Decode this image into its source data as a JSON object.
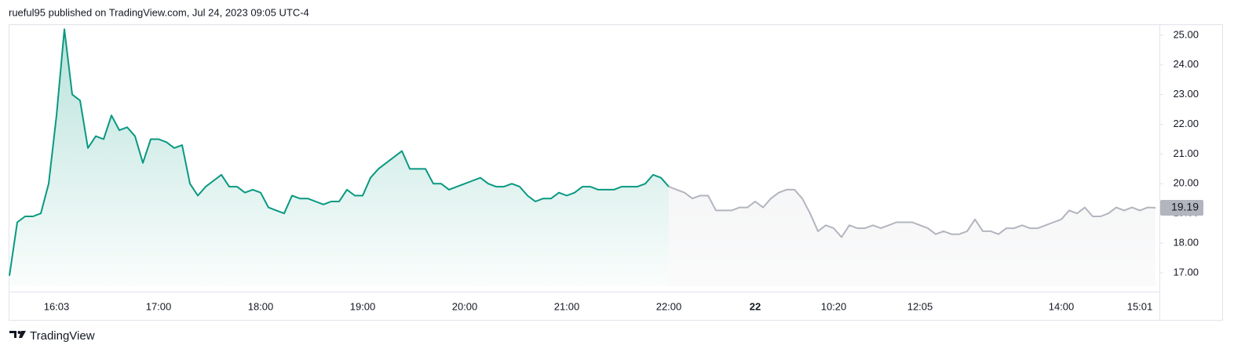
{
  "caption": "rueful95 published on TradingView.com, Jul 24, 2023 09:05 UTC-4",
  "brand": "TradingView",
  "chart_data": {
    "type": "line",
    "categories": [
      null,
      null,
      null,
      null,
      null,
      null,
      "16:03",
      null,
      null,
      null,
      null,
      null,
      null,
      null,
      null,
      null,
      null,
      null,
      null,
      "17:00",
      null,
      null,
      null,
      null,
      null,
      null,
      null,
      null,
      null,
      null,
      null,
      null,
      "18:00",
      null,
      null,
      null,
      null,
      null,
      null,
      null,
      null,
      null,
      null,
      null,
      null,
      "19:00",
      null,
      null,
      null,
      null,
      null,
      null,
      null,
      null,
      null,
      null,
      null,
      null,
      "20:00",
      null,
      null,
      null,
      null,
      null,
      null,
      null,
      null,
      null,
      null,
      null,
      null,
      "21:00",
      null,
      null,
      null,
      null,
      null,
      null,
      null,
      null,
      null,
      null,
      null,
      null,
      "22:00",
      null,
      null,
      null,
      null,
      null,
      null,
      null,
      null,
      null,
      null,
      "22",
      null,
      null,
      null,
      null,
      null,
      null,
      null,
      null,
      null,
      "10:20",
      null,
      null,
      null,
      null,
      null,
      null,
      null,
      null,
      null,
      null,
      "12:05",
      null,
      null,
      null,
      null,
      null,
      null,
      null,
      null,
      null,
      null,
      null,
      null,
      null,
      null,
      null,
      null,
      null,
      "14:00",
      null,
      null,
      null,
      null,
      null,
      null,
      null,
      null,
      null,
      "15:01",
      null,
      null
    ],
    "series": [
      {
        "color": "#089981",
        "values": [
          16.9,
          18.7,
          18.9,
          18.9,
          19.0,
          20.0,
          22.3,
          25.2,
          23.0,
          22.8,
          21.2,
          21.6,
          21.5,
          22.3,
          21.8,
          21.9,
          21.6,
          20.7,
          21.5,
          21.5,
          21.4,
          21.2,
          21.3,
          20.0,
          19.6,
          19.9,
          20.1,
          20.3,
          19.9,
          19.9,
          19.7,
          19.8,
          19.7,
          19.2,
          19.1,
          19.0,
          19.6,
          19.5,
          19.5,
          19.4,
          19.3,
          19.4,
          19.4,
          19.8,
          19.6,
          19.6,
          20.2,
          20.5,
          20.7,
          20.9,
          21.1,
          20.5,
          20.5,
          20.5,
          20.0,
          20.0,
          19.8,
          19.9,
          20.0,
          20.1,
          20.2,
          20.0,
          19.9,
          19.9,
          20.0,
          19.9,
          19.6,
          19.4,
          19.5,
          19.5,
          19.7,
          19.6,
          19.7,
          19.9,
          19.9,
          19.8,
          19.8,
          19.8,
          19.9,
          19.9,
          19.9,
          20.0,
          20.3,
          20.2,
          19.9,
          null,
          null,
          null,
          null,
          null,
          null,
          null,
          null,
          null,
          null,
          null,
          null,
          null,
          null,
          null,
          null,
          null,
          null,
          null,
          null,
          null,
          null,
          null,
          null,
          null,
          null,
          null,
          null,
          null,
          null,
          null,
          null,
          null,
          null,
          null,
          null,
          null,
          null,
          null,
          null,
          null,
          null,
          null,
          null,
          null,
          null,
          null,
          null,
          null,
          null,
          null,
          null,
          null,
          null,
          null,
          null,
          null,
          null,
          null,
          null,
          null,
          null
        ]
      },
      {
        "color": "#b2b5be",
        "values": [
          null,
          null,
          null,
          null,
          null,
          null,
          null,
          null,
          null,
          null,
          null,
          null,
          null,
          null,
          null,
          null,
          null,
          null,
          null,
          null,
          null,
          null,
          null,
          null,
          null,
          null,
          null,
          null,
          null,
          null,
          null,
          null,
          null,
          null,
          null,
          null,
          null,
          null,
          null,
          null,
          null,
          null,
          null,
          null,
          null,
          null,
          null,
          null,
          null,
          null,
          null,
          null,
          null,
          null,
          null,
          null,
          null,
          null,
          null,
          null,
          null,
          null,
          null,
          null,
          null,
          null,
          null,
          null,
          null,
          null,
          null,
          null,
          null,
          null,
          null,
          null,
          null,
          null,
          null,
          null,
          null,
          null,
          null,
          null,
          19.9,
          19.8,
          19.7,
          19.5,
          19.6,
          19.6,
          19.1,
          19.1,
          19.1,
          19.2,
          19.2,
          19.4,
          19.2,
          19.5,
          19.7,
          19.8,
          19.8,
          19.5,
          19.0,
          18.4,
          18.6,
          18.5,
          18.2,
          18.6,
          18.5,
          18.5,
          18.6,
          18.5,
          18.6,
          18.7,
          18.7,
          18.7,
          18.6,
          18.5,
          18.3,
          18.4,
          18.3,
          18.3,
          18.4,
          18.8,
          18.4,
          18.4,
          18.3,
          18.5,
          18.5,
          18.6,
          18.5,
          18.5,
          18.6,
          18.7,
          18.8,
          19.1,
          19.0,
          19.2,
          18.9,
          18.9,
          19.0,
          19.2,
          19.1,
          19.2,
          19.1,
          19.2,
          19.19
        ]
      }
    ],
    "ylim": [
      16.55,
      25.34
    ],
    "yticks": [
      {
        "value": 17,
        "label": "17.00"
      },
      {
        "value": 18,
        "label": "18.00"
      },
      {
        "value": 19,
        "label": "19.00"
      },
      {
        "value": 20,
        "label": "20.00"
      },
      {
        "value": 21,
        "label": "21.00"
      },
      {
        "value": 22,
        "label": "22.00"
      },
      {
        "value": 23,
        "label": "23.00"
      },
      {
        "value": 24,
        "label": "24.00"
      },
      {
        "value": 25,
        "label": "25.00"
      }
    ],
    "grid": false
  }
}
